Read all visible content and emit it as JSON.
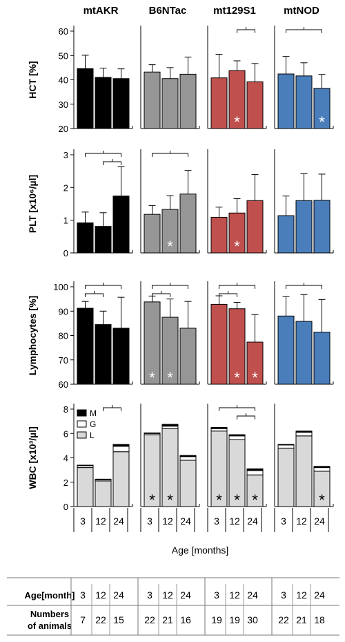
{
  "strains": [
    "mtAKR",
    "B6NTac",
    "mt129S1",
    "mtNOD"
  ],
  "colors": {
    "mtAKR": "#000000",
    "B6NTac": "#969696",
    "mt129S1": "#c0504d",
    "mtNOD": "#4a7ebb",
    "M": "#000000",
    "G": "#ffffff",
    "L": "#d9d9d9"
  },
  "x_categories": [
    "3",
    "12",
    "24"
  ],
  "x_axis_label": "Age [months]",
  "chart_data": [
    {
      "type": "bar",
      "ylabel": "HCT [%]",
      "ylim": [
        20,
        60
      ],
      "yticks": [
        "20",
        "30",
        "40",
        "50",
        "60"
      ],
      "categories": [
        "3",
        "12",
        "24"
      ],
      "series": [
        {
          "name": "mtAKR",
          "values": [
            44.6,
            41.0,
            40.5
          ],
          "errors": [
            5.5,
            3.8,
            4.0
          ],
          "stars": [
            false,
            false,
            false
          ]
        },
        {
          "name": "B6NTac",
          "values": [
            43.2,
            40.5,
            42.3
          ],
          "errors": [
            3.0,
            4.5,
            7.0
          ],
          "stars": [
            false,
            false,
            false
          ]
        },
        {
          "name": "mt129S1",
          "values": [
            40.8,
            43.8,
            39.2
          ],
          "errors": [
            9.7,
            4.0,
            7.5
          ],
          "stars": [
            false,
            true,
            false
          ]
        },
        {
          "name": "mtNOD",
          "values": [
            42.4,
            41.6,
            36.5
          ],
          "errors": [
            7.2,
            5.4,
            5.7
          ],
          "stars": [
            false,
            false,
            true
          ]
        }
      ],
      "brackets": [
        {
          "strain": 2,
          "from": 1,
          "to": 2,
          "level": 0
        },
        {
          "strain": 3,
          "from": 0,
          "to": 2,
          "level": 0
        }
      ]
    },
    {
      "type": "bar",
      "ylabel": "PLT [x10⁶/µl]",
      "ylim": [
        0,
        3
      ],
      "yticks": [
        "0",
        "1",
        "2",
        "3"
      ],
      "categories": [
        "3",
        "12",
        "24"
      ],
      "series": [
        {
          "name": "mtAKR",
          "values": [
            0.92,
            0.81,
            1.74
          ],
          "errors": [
            0.33,
            0.42,
            0.9
          ],
          "stars": [
            false,
            false,
            false
          ]
        },
        {
          "name": "B6NTac",
          "values": [
            1.18,
            1.33,
            1.8
          ],
          "errors": [
            0.27,
            0.42,
            0.72
          ],
          "stars": [
            false,
            true,
            false
          ]
        },
        {
          "name": "mt129S1",
          "values": [
            1.09,
            1.22,
            1.6
          ],
          "errors": [
            0.31,
            0.44,
            0.8
          ],
          "stars": [
            false,
            true,
            false
          ]
        },
        {
          "name": "mtNOD",
          "values": [
            1.14,
            1.6,
            1.61
          ],
          "errors": [
            0.6,
            0.82,
            0.8
          ],
          "stars": [
            false,
            false,
            false
          ]
        }
      ],
      "brackets": [
        {
          "strain": 0,
          "from": 0,
          "to": 2,
          "level": 0
        },
        {
          "strain": 0,
          "from": 1,
          "to": 2,
          "level": 1
        },
        {
          "strain": 1,
          "from": 0,
          "to": 2,
          "level": 0
        }
      ]
    },
    {
      "type": "bar",
      "ylabel": "Lymphocytes [%]",
      "ylim": [
        60,
        100
      ],
      "yticks": [
        "60",
        "70",
        "80",
        "90",
        "100"
      ],
      "categories": [
        "3",
        "12",
        "24"
      ],
      "series": [
        {
          "name": "mtAKR",
          "values": [
            91.2,
            84.5,
            83.0
          ],
          "errors": [
            2.8,
            5.5,
            12.7
          ],
          "stars": [
            false,
            false,
            false
          ]
        },
        {
          "name": "B6NTac",
          "values": [
            93.8,
            87.5,
            83.0
          ],
          "errors": [
            2.4,
            7.5,
            11.0
          ],
          "stars": [
            true,
            true,
            false
          ]
        },
        {
          "name": "mt129S1",
          "values": [
            92.8,
            91.0,
            77.3
          ],
          "errors": [
            3.5,
            2.6,
            11.3
          ],
          "stars": [
            false,
            true,
            true
          ]
        },
        {
          "name": "mtNOD",
          "values": [
            88.0,
            85.8,
            81.4
          ],
          "errors": [
            8.0,
            11.0,
            13.4
          ],
          "stars": [
            false,
            false,
            false
          ]
        }
      ],
      "brackets": [
        {
          "strain": 0,
          "from": 0,
          "to": 2,
          "level": 0
        },
        {
          "strain": 0,
          "from": 0,
          "to": 1,
          "level": 1
        },
        {
          "strain": 1,
          "from": 0,
          "to": 2,
          "level": 0
        },
        {
          "strain": 1,
          "from": 0,
          "to": 1,
          "level": 1
        },
        {
          "strain": 2,
          "from": 0,
          "to": 2,
          "level": 0
        },
        {
          "strain": 2,
          "from": 0,
          "to": 1,
          "level": 1
        },
        {
          "strain": 3,
          "from": 0,
          "to": 2,
          "level": 0
        }
      ]
    },
    {
      "type": "stacked_bar",
      "ylabel": "WBC [x10³/µl]",
      "ylim": [
        0,
        8
      ],
      "yticks": [
        "0",
        "2",
        "4",
        "6",
        "8"
      ],
      "categories": [
        "3",
        "12",
        "24"
      ],
      "legend": [
        {
          "key": "M",
          "label": "M"
        },
        {
          "key": "G",
          "label": "G"
        },
        {
          "key": "L",
          "label": "L"
        }
      ],
      "series": [
        {
          "name": "mtAKR",
          "L": [
            3.2,
            2.1,
            4.5
          ],
          "G": [
            0.15,
            0.1,
            0.45
          ],
          "M": [
            0.05,
            0.05,
            0.15
          ],
          "stars": [
            false,
            false,
            false
          ]
        },
        {
          "name": "B6NTac",
          "L": [
            5.9,
            6.4,
            3.8
          ],
          "G": [
            0.1,
            0.2,
            0.3
          ],
          "M": [
            0.05,
            0.15,
            0.1
          ],
          "stars": [
            true,
            true,
            false
          ]
        },
        {
          "name": "mt129S1",
          "L": [
            6.2,
            5.5,
            2.6
          ],
          "G": [
            0.2,
            0.3,
            0.35
          ],
          "M": [
            0.1,
            0.1,
            0.15
          ],
          "stars": [
            true,
            true,
            true
          ]
        },
        {
          "name": "mtNOD",
          "L": [
            4.8,
            5.8,
            2.9
          ],
          "G": [
            0.25,
            0.3,
            0.3
          ],
          "M": [
            0.05,
            0.1,
            0.1
          ],
          "stars": [
            false,
            false,
            true
          ]
        }
      ],
      "brackets": [
        {
          "strain": 0,
          "from": 1,
          "to": 2,
          "level": 0
        },
        {
          "strain": 2,
          "from": 0,
          "to": 2,
          "level": 0
        },
        {
          "strain": 2,
          "from": 1,
          "to": 2,
          "level": 1
        }
      ]
    }
  ],
  "star_glyph": "*",
  "table": {
    "row1_label": "Age[month]",
    "row2_label_line1": "Numbers",
    "row2_label_line2": "of animals",
    "ages": [
      "3",
      "12",
      "24"
    ],
    "counts": [
      [
        "7",
        "22",
        "15"
      ],
      [
        "22",
        "21",
        "16"
      ],
      [
        "19",
        "19",
        "30"
      ],
      [
        "22",
        "21",
        "18"
      ]
    ]
  }
}
